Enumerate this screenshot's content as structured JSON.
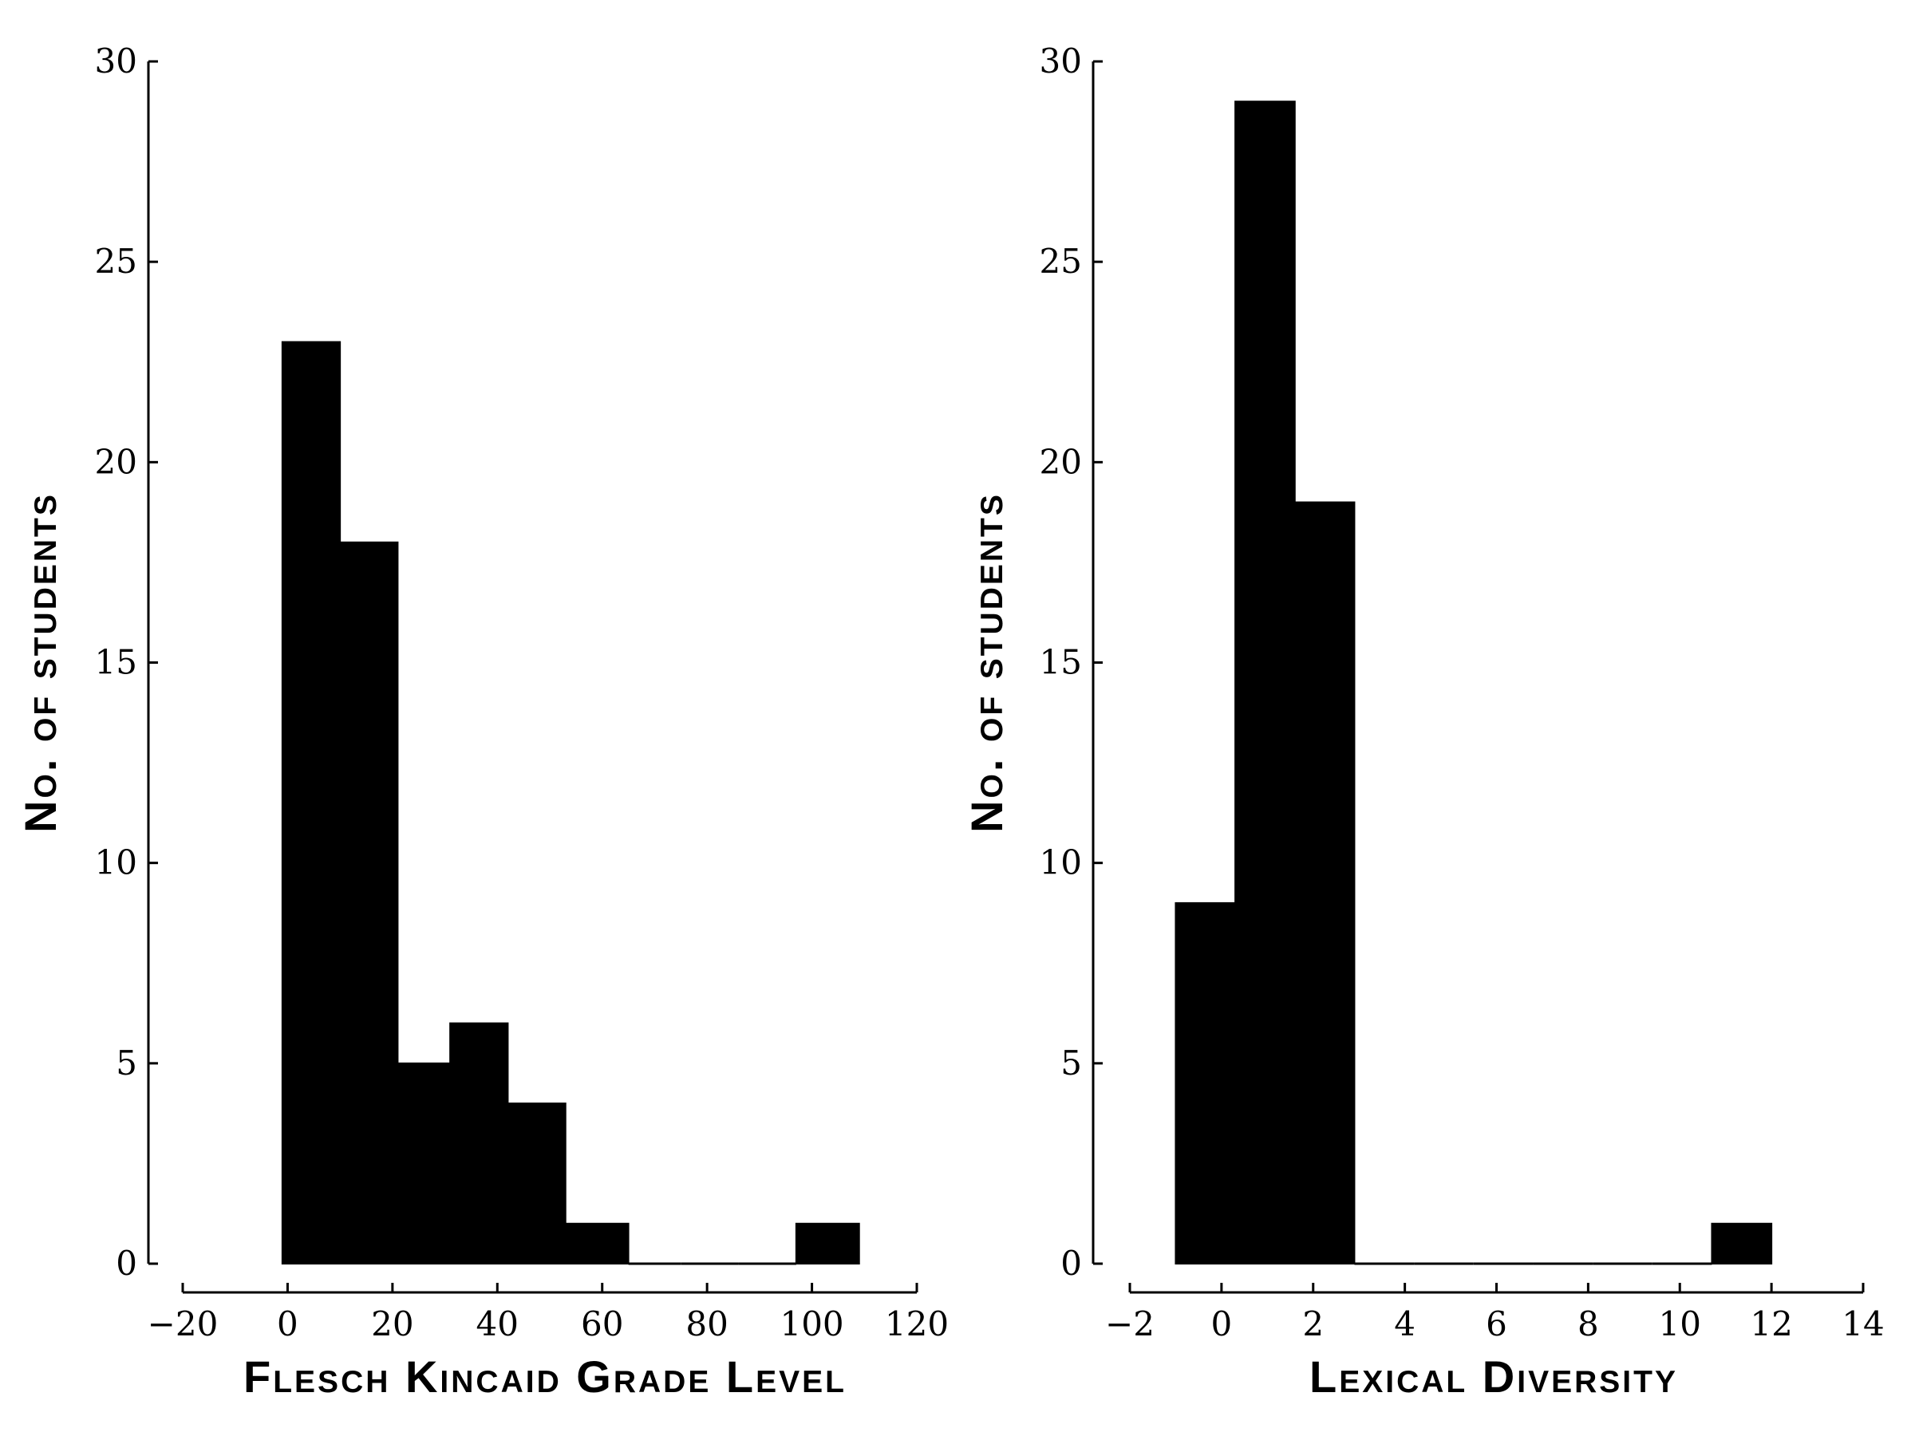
{
  "chart_data": [
    {
      "type": "bar",
      "title": "",
      "xlabel": "Flesch Kincaid Grade Level",
      "ylabel": "No. of students",
      "bins": [
        [
          -1,
          10
        ],
        [
          10,
          21
        ],
        [
          21,
          31
        ],
        [
          31,
          42
        ],
        [
          42,
          53
        ],
        [
          53,
          65
        ],
        [
          65,
          75
        ],
        [
          75,
          86
        ],
        [
          86,
          97
        ],
        [
          97,
          109
        ]
      ],
      "values": [
        23,
        18,
        5,
        6,
        4,
        1,
        0,
        0,
        0,
        1
      ],
      "xlim": [
        -20,
        120
      ],
      "ylim": [
        0,
        30
      ],
      "xticks": [
        -20,
        0,
        20,
        40,
        60,
        80,
        100,
        120
      ],
      "xtick_labels": [
        "−20",
        "0",
        "20",
        "40",
        "60",
        "80",
        "100",
        "120"
      ],
      "yticks": [
        0,
        5,
        10,
        15,
        20,
        25,
        30
      ],
      "ytick_labels": [
        "0",
        "5",
        "10",
        "15",
        "20",
        "25",
        "30"
      ],
      "grid": false,
      "color": "#000000"
    },
    {
      "type": "bar",
      "title": "",
      "xlabel": "Lexical Diversity",
      "ylabel": "No. of students",
      "bins": [
        [
          -1.0,
          0.3
        ],
        [
          0.3,
          1.6
        ],
        [
          1.6,
          2.9
        ],
        [
          2.9,
          4.2
        ],
        [
          4.2,
          5.5
        ],
        [
          5.5,
          6.8
        ],
        [
          6.8,
          8.1
        ],
        [
          8.1,
          9.4
        ],
        [
          9.4,
          10.7
        ],
        [
          10.7,
          12.0
        ]
      ],
      "values": [
        9,
        29,
        19,
        0,
        0,
        0,
        0,
        0,
        0,
        1
      ],
      "xlim": [
        -2,
        14
      ],
      "ylim": [
        0,
        30
      ],
      "xticks": [
        -2,
        0,
        2,
        4,
        6,
        8,
        10,
        12,
        14
      ],
      "xtick_labels": [
        "−2",
        "0",
        "2",
        "4",
        "6",
        "8",
        "10",
        "12",
        "14"
      ],
      "yticks": [
        0,
        5,
        10,
        15,
        20,
        25,
        30
      ],
      "ytick_labels": [
        "0",
        "5",
        "10",
        "15",
        "20",
        "25",
        "30"
      ],
      "grid": false,
      "color": "#000000"
    }
  ]
}
